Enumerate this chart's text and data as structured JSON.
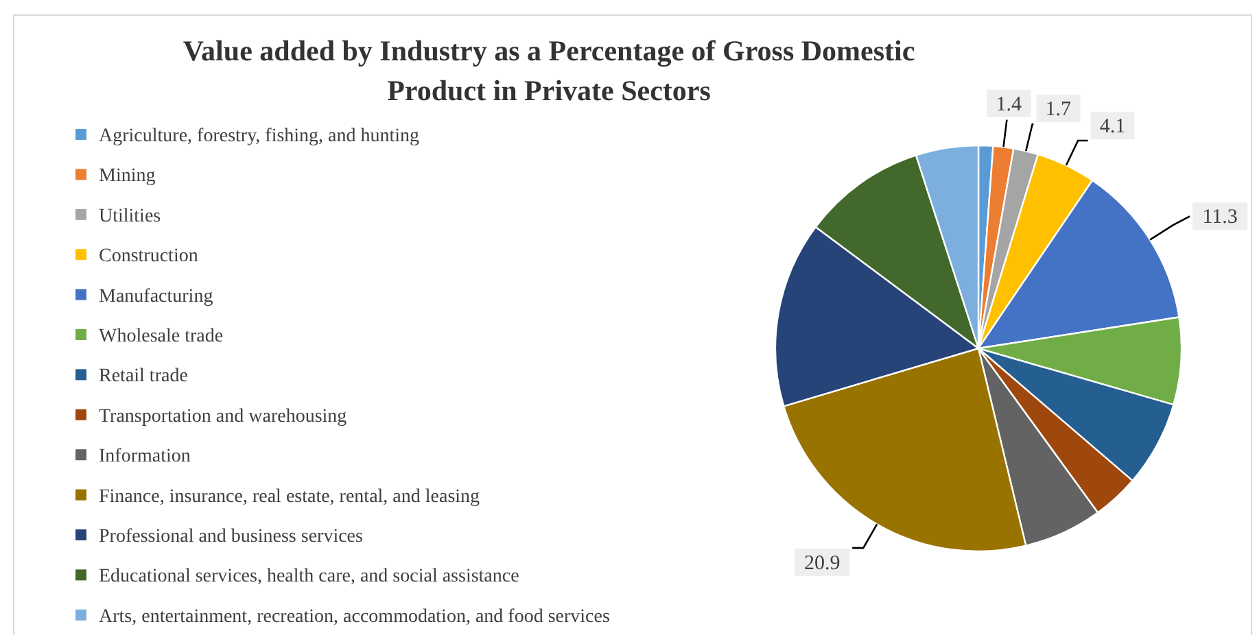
{
  "chart_data": {
    "type": "pie",
    "title": "Value added by Industry as a Percentage of Gross Domestic Product in Private Sectors",
    "categories": [
      "Agriculture, forestry, fishing, and hunting",
      "Mining",
      "Utilities",
      "Construction",
      "Manufacturing",
      "Wholesale trade",
      "Retail trade",
      "Transportation and warehousing",
      "Information",
      "Finance, insurance, real estate, rental, and leasing",
      "Professional and business services",
      "Educational services, health care, and social assistance",
      "Arts, entertainment, recreation, accommodation, and food services"
    ],
    "values": [
      1.0,
      1.4,
      1.7,
      4.1,
      11.3,
      6.0,
      5.9,
      3.2,
      5.4,
      20.9,
      12.8,
      8.5,
      4.3
    ],
    "value_labels": [
      null,
      "1.4",
      "1.7",
      "4.1",
      "11.3",
      null,
      null,
      null,
      null,
      "20.9",
      null,
      null,
      null
    ],
    "colors": [
      "#5b9bd5",
      "#ed7d31",
      "#a5a5a5",
      "#ffc000",
      "#4472c4",
      "#70ad47",
      "#255e91",
      "#9e480e",
      "#636363",
      "#997300",
      "#264478",
      "#43682b",
      "#7cafdd"
    ],
    "legend": "left"
  }
}
